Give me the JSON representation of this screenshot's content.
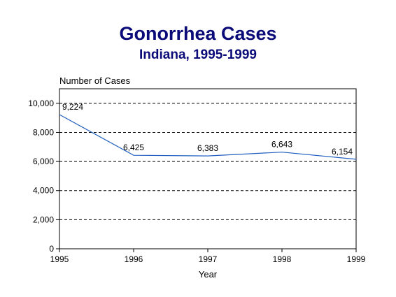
{
  "chart_data": {
    "type": "line",
    "title": "Gonorrhea Cases",
    "subtitle": "Indiana, 1995-1999",
    "ylabel": "Number of Cases",
    "xlabel": "Year",
    "x": [
      1995,
      1996,
      1997,
      1998,
      1999
    ],
    "series": [
      {
        "values": [
          9224,
          6425,
          6383,
          6643,
          6154
        ]
      }
    ],
    "data_labels": [
      "9,224",
      "6,425",
      "6,383",
      "6,643",
      "6,154"
    ],
    "xticks": [
      "1995",
      "1996",
      "1997",
      "1998",
      "1999"
    ],
    "yticks": [
      {
        "value": 0,
        "label": "0"
      },
      {
        "value": 2000,
        "label": "2,000"
      },
      {
        "value": 4000,
        "label": "4,000"
      },
      {
        "value": 6000,
        "label": "6,000"
      },
      {
        "value": 8000,
        "label": "8,000"
      },
      {
        "value": 10000,
        "label": "10,000"
      }
    ],
    "xlim": [
      1995,
      1999
    ],
    "ylim": [
      0,
      11000
    ],
    "grid": "horizontal dashed",
    "legend": "none",
    "colors": {
      "line": "#1f5fbf",
      "title": "#0a0a78"
    }
  }
}
